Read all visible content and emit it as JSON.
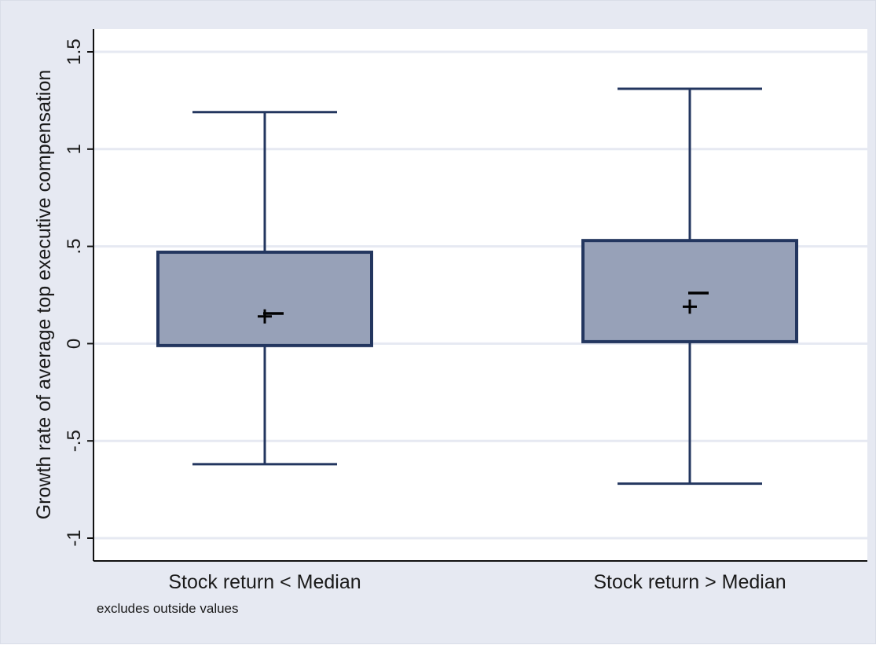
{
  "chart_data": {
    "type": "box",
    "ylabel": "Growth rate of average top executive compensation",
    "ylim": [
      -1.1,
      1.6
    ],
    "yticks": [
      -1,
      -0.5,
      0,
      0.5,
      1,
      1.5
    ],
    "ytick_labels": [
      "-1",
      "-.5",
      "0",
      ".5",
      "1",
      "1.5"
    ],
    "grid": true,
    "note": "excludes outside values",
    "categories": [
      "Stock return < Median",
      "Stock return > Median"
    ],
    "boxes": [
      {
        "category": "Stock return < Median",
        "whisker_low": -0.62,
        "q1": -0.01,
        "median": 0.155,
        "q3": 0.47,
        "whisker_high": 1.19,
        "mean": 0.14
      },
      {
        "category": "Stock return > Median",
        "whisker_low": -0.72,
        "q1": 0.01,
        "median": 0.26,
        "q3": 0.53,
        "whisker_high": 1.31,
        "mean": 0.19
      }
    ],
    "colors": {
      "box_fill": "#97a1b8",
      "box_stroke": "#23365f",
      "grid": "#e6e9f2",
      "frame_bg": "#e6e9f2",
      "plot_bg": "#ffffff"
    }
  }
}
